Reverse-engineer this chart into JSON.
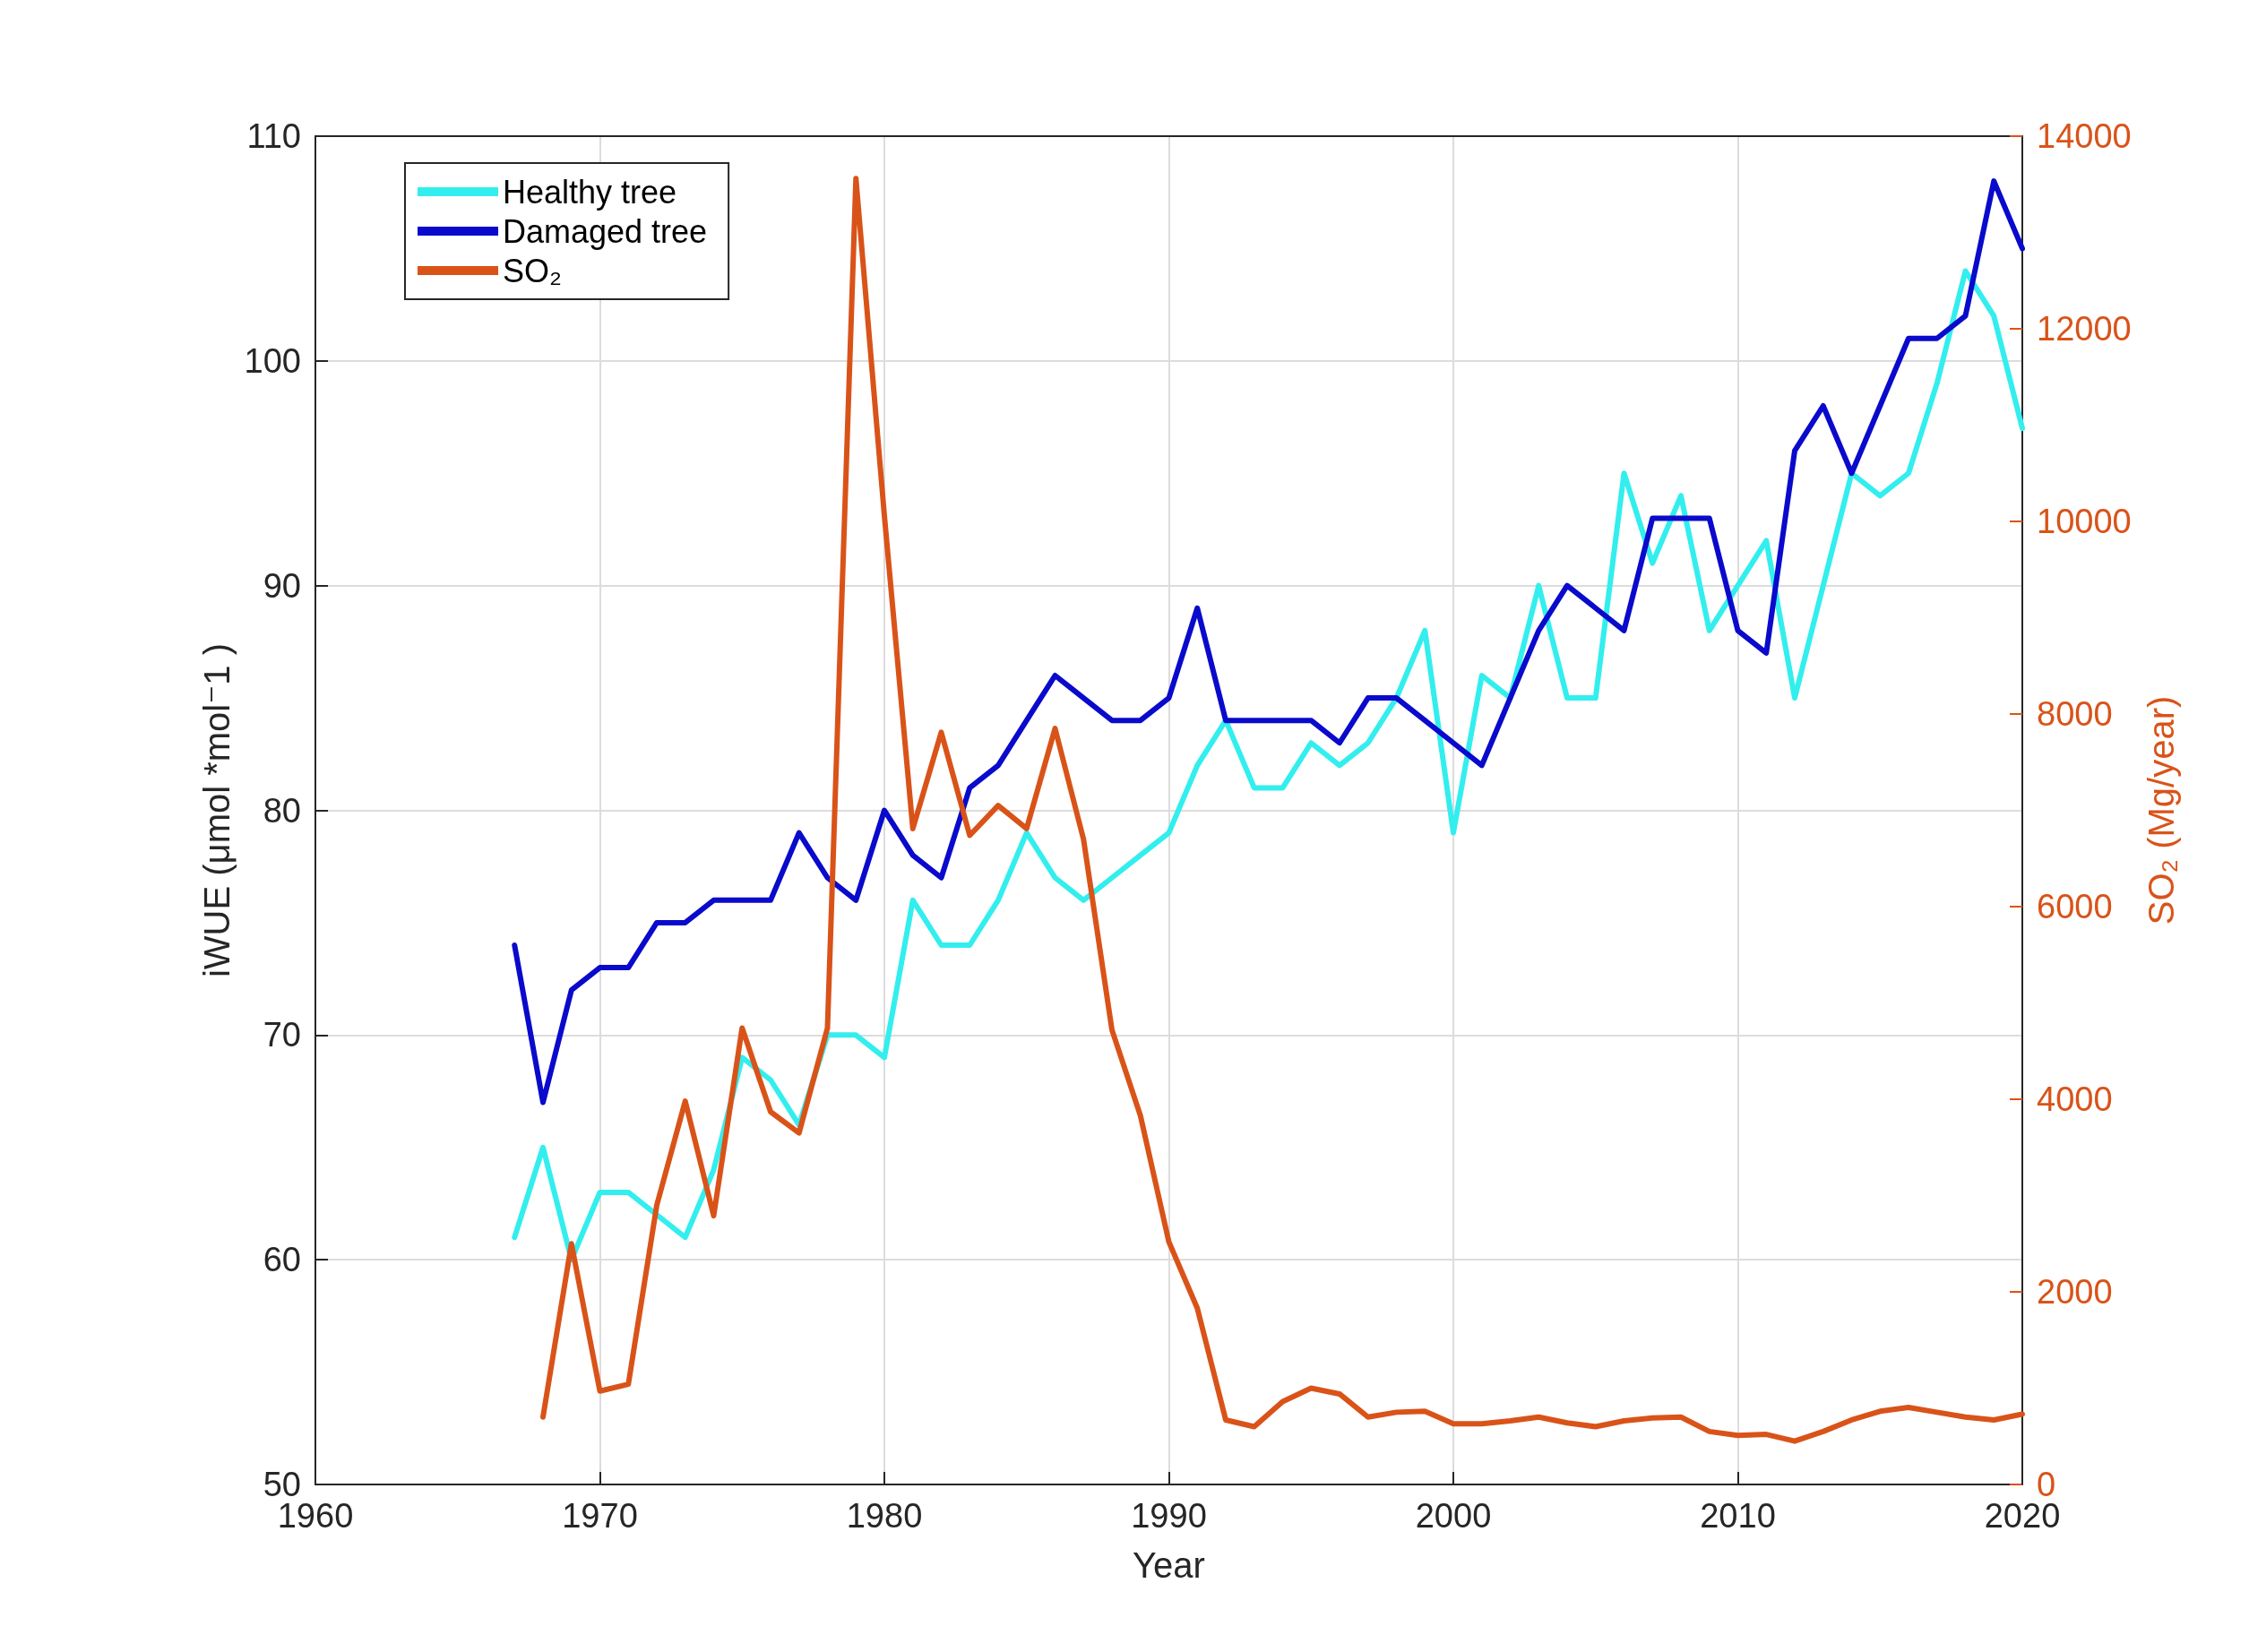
{
  "chart_data": {
    "type": "line",
    "xlabel": "Year",
    "ylabel": "iWUE (μmol *mol⁻1 )",
    "y2label": "SO₂ (Mg/year)",
    "xlim": [
      1960,
      2020
    ],
    "xticks": [
      1960,
      1970,
      1980,
      1990,
      2000,
      2010,
      2020
    ],
    "ylim": [
      50,
      110
    ],
    "yticks": [
      50,
      60,
      70,
      80,
      90,
      100,
      110
    ],
    "y2lim": [
      0,
      14000
    ],
    "y2ticks": [
      0,
      2000,
      4000,
      6000,
      8000,
      10000,
      12000,
      14000
    ],
    "grid": true,
    "legend": "top left",
    "marker": "none",
    "line_style": "solid",
    "series": [
      {
        "name": "Healthy tree",
        "color": "#33eeee",
        "x": [
          1967,
          1968,
          1969,
          1970,
          1971,
          1972,
          1973,
          1974,
          1975,
          1976,
          1977,
          1978,
          1979,
          1980,
          1981,
          1982,
          1983,
          1984,
          1985,
          1986,
          1987,
          1988,
          1989,
          1990,
          1991,
          1992,
          1993,
          1994,
          1995,
          1996,
          1997,
          1998,
          1999,
          2000,
          2001,
          2002,
          2003,
          2004,
          2005,
          2006,
          2007,
          2008,
          2009,
          2010,
          2011,
          2012,
          2013,
          2014,
          2015,
          2016,
          2017,
          2018,
          2019,
          2020
        ],
        "values": [
          61,
          65,
          60,
          63,
          63,
          62,
          61,
          64,
          69,
          68,
          66,
          70,
          70,
          69,
          76,
          74,
          74,
          76,
          79,
          77,
          76,
          77,
          78,
          79,
          82,
          84,
          81,
          81,
          83,
          82,
          83,
          85,
          88,
          79,
          86,
          85,
          90,
          85,
          85,
          95,
          91,
          94,
          88,
          90,
          92,
          85,
          90,
          95,
          94,
          95,
          99,
          104,
          102,
          97
        ]
      },
      {
        "name": "Damaged tree",
        "color": "#0a0acc",
        "x": [
          1967,
          1968,
          1969,
          1970,
          1971,
          1972,
          1973,
          1974,
          1975,
          1976,
          1977,
          1978,
          1979,
          1980,
          1981,
          1982,
          1983,
          1984,
          1985,
          1986,
          1987,
          1988,
          1989,
          1990,
          1991,
          1992,
          1993,
          1994,
          1995,
          1996,
          1997,
          1998,
          1999,
          2000,
          2001,
          2002,
          2003,
          2004,
          2005,
          2006,
          2007,
          2008,
          2009,
          2010,
          2011,
          2012,
          2013,
          2014,
          2015,
          2016,
          2017,
          2018,
          2019,
          2020
        ],
        "values": [
          74,
          67,
          72,
          73,
          73,
          75,
          75,
          76,
          76,
          76,
          79,
          77,
          76,
          80,
          78,
          77,
          81,
          82,
          84,
          86,
          85,
          84,
          84,
          85,
          89,
          84,
          84,
          84,
          84,
          83,
          85,
          85,
          84,
          83,
          82,
          85,
          88,
          90,
          89,
          88,
          93,
          93,
          93,
          88,
          87,
          96,
          98,
          95,
          98,
          101,
          101,
          102,
          108,
          105
        ]
      },
      {
        "name": "SO₂",
        "color": "#d95319",
        "axis": "y2",
        "x": [
          1968,
          1969,
          1970,
          1971,
          1972,
          1973,
          1974,
          1975,
          1976,
          1977,
          1978,
          1979,
          1980,
          1981,
          1982,
          1983,
          1984,
          1985,
          1986,
          1987,
          1988,
          1989,
          1990,
          1991,
          1992,
          1993,
          1994,
          1995,
          1996,
          1997,
          1998,
          1999,
          2000,
          2001,
          2002,
          2003,
          2004,
          2005,
          2006,
          2007,
          2008,
          2009,
          2010,
          2011,
          2012,
          2013,
          2014,
          2015,
          2016,
          2017,
          2018,
          2019,
          2020
        ],
        "values": [
          700,
          2500,
          970,
          1040,
          2900,
          3980,
          2790,
          4740,
          3870,
          3650,
          4740,
          13560,
          10060,
          6810,
          7810,
          6740,
          7050,
          6810,
          7850,
          6700,
          4720,
          3830,
          2520,
          1830,
          670,
          600,
          860,
          1000,
          940,
          700,
          750,
          760,
          630,
          630,
          660,
          700,
          640,
          600,
          660,
          690,
          700,
          550,
          510,
          520,
          450,
          550,
          670,
          760,
          800,
          750,
          700,
          670,
          730
        ]
      }
    ]
  }
}
